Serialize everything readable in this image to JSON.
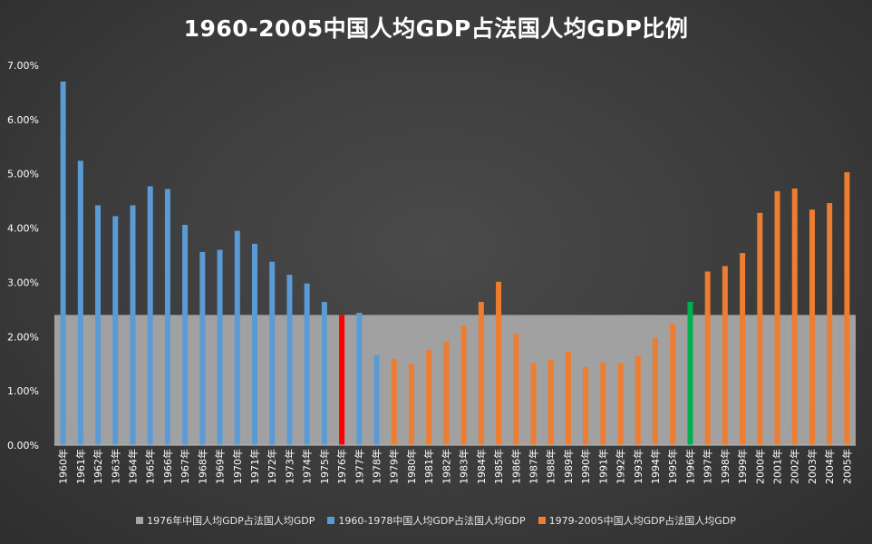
{
  "chart_data": {
    "type": "bar",
    "title": "1960-2005中国人均GDP占法国人均GDP比例",
    "xlabel": "",
    "ylabel": "",
    "ylim": [
      0,
      7
    ],
    "y_ticks": [
      "0.00%",
      "1.00%",
      "2.00%",
      "3.00%",
      "4.00%",
      "5.00%",
      "6.00%",
      "7.00%"
    ],
    "y_tick_values": [
      0,
      1,
      2,
      3,
      4,
      5,
      6,
      7
    ],
    "categories": [
      "1960年",
      "1961年",
      "1962年",
      "1963年",
      "1964年",
      "1965年",
      "1966年",
      "1967年",
      "1968年",
      "1969年",
      "1970年",
      "1971年",
      "1972年",
      "1973年",
      "1974年",
      "1975年",
      "1976年",
      "1977年",
      "1978年",
      "1979年",
      "1980年",
      "1981年",
      "1982年",
      "1983年",
      "1984年",
      "1985年",
      "1986年",
      "1987年",
      "1988年",
      "1989年",
      "1990年",
      "1991年",
      "1992年",
      "1993年",
      "1994年",
      "1995年",
      "1996年",
      "1997年",
      "1998年",
      "1999年",
      "2000年",
      "2001年",
      "2002年",
      "2003年",
      "2004年",
      "2005年"
    ],
    "values": [
      6.7,
      5.24,
      4.42,
      4.22,
      4.42,
      4.77,
      4.72,
      4.06,
      3.56,
      3.6,
      3.95,
      3.71,
      3.38,
      3.14,
      2.98,
      2.64,
      2.4,
      2.44,
      1.66,
      1.59,
      1.5,
      1.75,
      1.91,
      2.21,
      2.64,
      3.01,
      2.06,
      1.51,
      1.58,
      1.73,
      1.44,
      1.52,
      1.51,
      1.64,
      1.98,
      2.24,
      2.64,
      3.2,
      3.3,
      3.54,
      4.28,
      4.68,
      4.73,
      4.34,
      4.46,
      5.03
    ],
    "reference_value": 2.4,
    "series": [
      {
        "name": "1976年中国人均GDP占法国人均GDP",
        "color": "#a6a6a6",
        "kind": "band"
      },
      {
        "name": "1960-1978中国人均GDP占法国人均GDP",
        "color": "#5b9bd5",
        "kind": "bar"
      },
      {
        "name": "1979-2005中国人均GDP占法国人均GDP",
        "color": "#ed7d31",
        "kind": "bar"
      }
    ],
    "highlights": {
      "1976年": "#ff0000",
      "1996年": "#00b050"
    },
    "grid": false,
    "legend_position": "bottom"
  }
}
